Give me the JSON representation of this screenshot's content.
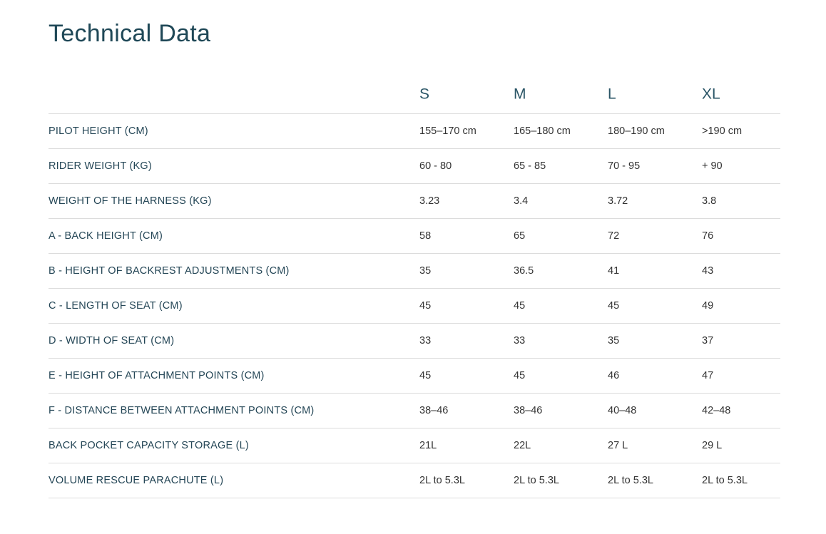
{
  "header": {
    "title": "Technical Data"
  },
  "table": {
    "columns": [
      "S",
      "M",
      "L",
      "XL"
    ],
    "rows": [
      {
        "label": "PILOT HEIGHT (CM)",
        "values": [
          "155–170 cm",
          "165–180 cm",
          "180–190 cm",
          ">190 cm"
        ]
      },
      {
        "label": "RIDER WEIGHT (KG)",
        "values": [
          "60 - 80",
          "65 - 85",
          "70 - 95",
          "+ 90"
        ]
      },
      {
        "label": "WEIGHT OF THE HARNESS (KG)",
        "values": [
          "3.23",
          "3.4",
          "3.72",
          "3.8"
        ]
      },
      {
        "label": "A - BACK HEIGHT (CM)",
        "values": [
          "58",
          "65",
          "72",
          "76"
        ]
      },
      {
        "label": "B - HEIGHT OF BACKREST ADJUSTMENTS (CM)",
        "values": [
          "35",
          "36.5",
          "41",
          "43"
        ]
      },
      {
        "label": "C - LENGTH OF SEAT (CM)",
        "values": [
          "45",
          "45",
          "45",
          "49"
        ]
      },
      {
        "label": "D - WIDTH OF SEAT (CM)",
        "values": [
          "33",
          "33",
          "35",
          "37"
        ]
      },
      {
        "label": "E - HEIGHT OF ATTACHMENT POINTS (CM)",
        "values": [
          "45",
          "45",
          "46",
          "47"
        ]
      },
      {
        "label": "F - DISTANCE BETWEEN ATTACHMENT POINTS (CM)",
        "values": [
          "38–46",
          "38–46",
          "40–48",
          "42–48"
        ]
      },
      {
        "label": "BACK POCKET CAPACITY STORAGE (L)",
        "values": [
          "21L",
          "22L",
          "27 L",
          "29 L"
        ]
      },
      {
        "label": "VOLUME RESCUE PARACHUTE (L)",
        "values": [
          "2L to 5.3L",
          "2L to 5.3L",
          "2L to 5.3L",
          "2L to 5.3L"
        ]
      }
    ]
  }
}
